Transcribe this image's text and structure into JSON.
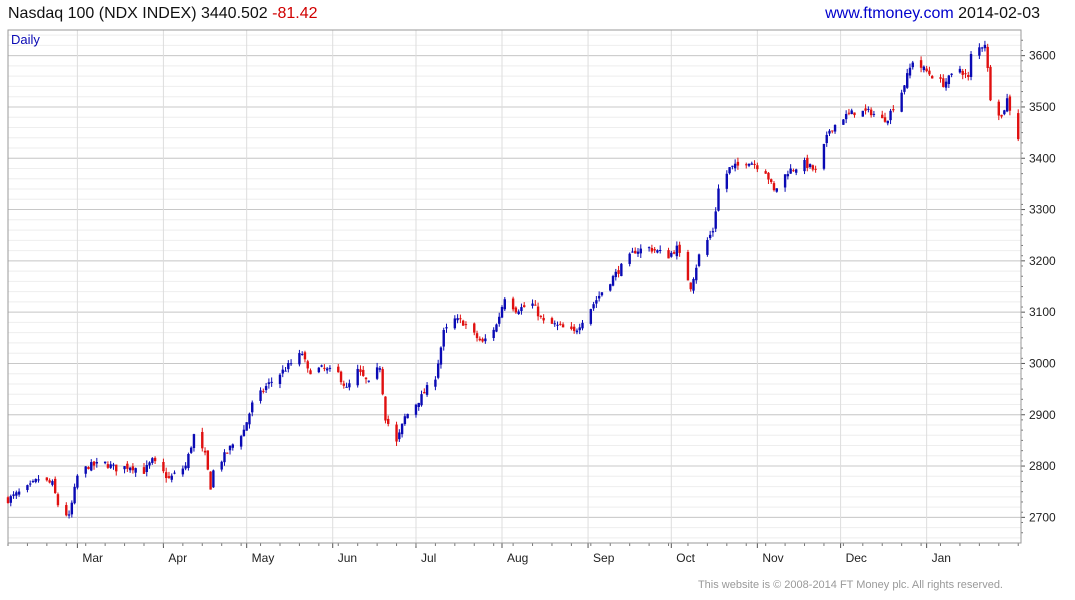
{
  "header": {
    "title": "Nasdaq 100 (NDX INDEX)",
    "last": "3440.502",
    "change": "-81.42",
    "site": "www.ftmoney.com",
    "date": "2014-02-03"
  },
  "footer": {
    "copyright": "This website is © 2008-2014 FT Money plc. All rights reserved."
  },
  "colors": {
    "up": "#0a0ab4",
    "down": "#e01010",
    "grid": "#d8d8d8",
    "frame": "#999999"
  },
  "chart_data": {
    "type": "candlestick",
    "period_label": "Daily",
    "ylim": [
      2650,
      3650
    ],
    "y_ticks": [
      2700,
      2800,
      2900,
      3000,
      3100,
      3200,
      3300,
      3400,
      3500,
      3600
    ],
    "x_tick_labels": [
      "Mar",
      "Apr",
      "May",
      "Jun",
      "Jul",
      "Aug",
      "Sep",
      "Oct",
      "Nov",
      "Dec",
      "Jan"
    ],
    "x_tick_dates": [
      "2013-03-01",
      "2013-04-01",
      "2013-05-01",
      "2013-06-01",
      "2013-07-01",
      "2013-08-01",
      "2013-09-01",
      "2013-10-01",
      "2013-11-01",
      "2013-12-01",
      "2014-01-01"
    ],
    "x_range": [
      "2013-02-04",
      "2014-02-04"
    ],
    "series_close": [
      [
        "2013-02-04",
        2735
      ],
      [
        "2013-02-12",
        2760
      ],
      [
        "2013-02-15",
        2775
      ],
      [
        "2013-02-20",
        2765
      ],
      [
        "2013-02-22",
        2725
      ],
      [
        "2013-02-26",
        2700
      ],
      [
        "2013-03-01",
        2780
      ],
      [
        "2013-03-05",
        2800
      ],
      [
        "2013-03-11",
        2805
      ],
      [
        "2013-03-15",
        2795
      ],
      [
        "2013-03-20",
        2800
      ],
      [
        "2013-03-25",
        2790
      ],
      [
        "2013-03-28",
        2810
      ],
      [
        "2013-04-03",
        2775
      ],
      [
        "2013-04-09",
        2800
      ],
      [
        "2013-04-12",
        2860
      ],
      [
        "2013-04-16",
        2820
      ],
      [
        "2013-04-18",
        2760
      ],
      [
        "2013-04-19",
        2790
      ],
      [
        "2013-04-25",
        2835
      ],
      [
        "2013-04-30",
        2870
      ],
      [
        "2013-05-03",
        2920
      ],
      [
        "2013-05-08",
        2955
      ],
      [
        "2013-05-14",
        2985
      ],
      [
        "2013-05-21",
        3020
      ],
      [
        "2013-05-23",
        2985
      ],
      [
        "2013-05-28",
        2990
      ],
      [
        "2013-06-03",
        2980
      ],
      [
        "2013-06-06",
        2950
      ],
      [
        "2013-06-10",
        2985
      ],
      [
        "2013-06-14",
        2960
      ],
      [
        "2013-06-18",
        2995
      ],
      [
        "2013-06-20",
        2895
      ],
      [
        "2013-06-24",
        2845
      ],
      [
        "2013-06-27",
        2895
      ],
      [
        "2013-07-03",
        2935
      ],
      [
        "2013-07-08",
        2975
      ],
      [
        "2013-07-11",
        3060
      ],
      [
        "2013-07-15",
        3085
      ],
      [
        "2013-07-18",
        3080
      ],
      [
        "2013-07-22",
        3055
      ],
      [
        "2013-07-25",
        3040
      ],
      [
        "2013-07-30",
        3075
      ],
      [
        "2013-08-02",
        3130
      ],
      [
        "2013-08-06",
        3105
      ],
      [
        "2013-08-12",
        3115
      ],
      [
        "2013-08-16",
        3080
      ],
      [
        "2013-08-20",
        3075
      ],
      [
        "2013-08-27",
        3060
      ],
      [
        "2013-08-30",
        3085
      ],
      [
        "2013-09-06",
        3140
      ],
      [
        "2013-09-11",
        3175
      ],
      [
        "2013-09-18",
        3220
      ],
      [
        "2013-09-23",
        3225
      ],
      [
        "2013-09-30",
        3210
      ],
      [
        "2013-10-03",
        3225
      ],
      [
        "2013-10-08",
        3150
      ],
      [
        "2013-10-11",
        3210
      ],
      [
        "2013-10-16",
        3260
      ],
      [
        "2013-10-18",
        3340
      ],
      [
        "2013-10-22",
        3380
      ],
      [
        "2013-10-25",
        3385
      ],
      [
        "2013-10-29",
        3395
      ],
      [
        "2013-11-04",
        3375
      ],
      [
        "2013-11-07",
        3335
      ],
      [
        "2013-11-12",
        3375
      ],
      [
        "2013-11-18",
        3390
      ],
      [
        "2013-11-22",
        3375
      ],
      [
        "2013-11-27",
        3455
      ],
      [
        "2013-12-02",
        3480
      ],
      [
        "2013-12-06",
        3490
      ],
      [
        "2013-12-12",
        3490
      ],
      [
        "2013-12-16",
        3475
      ],
      [
        "2013-12-18",
        3480
      ],
      [
        "2013-12-23",
        3530
      ],
      [
        "2013-12-27",
        3590
      ],
      [
        "2014-01-02",
        3565
      ],
      [
        "2014-01-07",
        3545
      ],
      [
        "2014-01-13",
        3575
      ],
      [
        "2014-01-16",
        3555
      ],
      [
        "2014-01-17",
        3600
      ],
      [
        "2014-01-22",
        3625
      ],
      [
        "2014-01-24",
        3520
      ],
      [
        "2014-01-28",
        3480
      ],
      [
        "2014-01-30",
        3515
      ],
      [
        "2014-02-03",
        3440.502
      ]
    ]
  }
}
